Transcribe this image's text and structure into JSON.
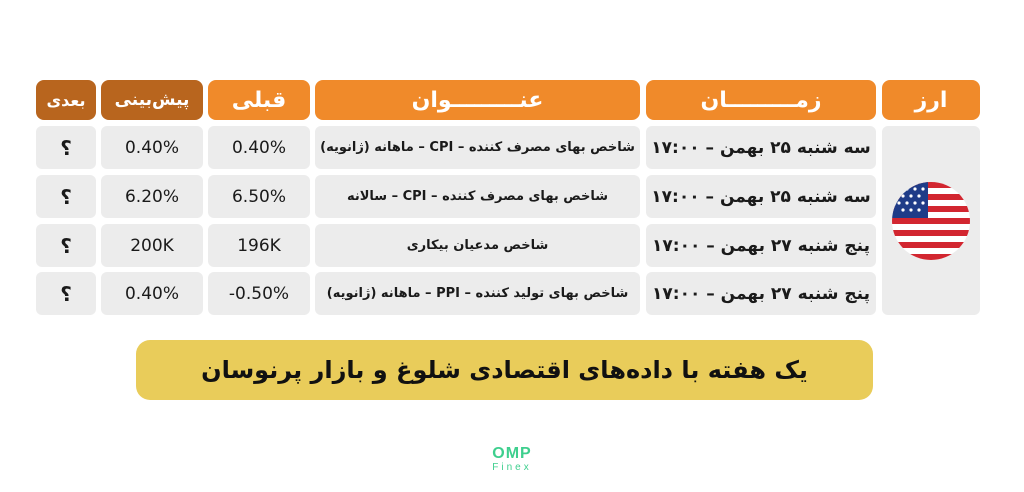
{
  "headers": {
    "currency": "ارز",
    "time": "زمـــــــــان",
    "title": "عنـــــــــوان",
    "previous": "قبلی",
    "forecast": "پیش‌بینی",
    "next": "بعدی"
  },
  "rows": [
    {
      "time": "سه شنبه ۲۵ بهمن – ۱۷:۰۰",
      "title": "شاخص بهای مصرف کننده – CPI – ماهانه (ژانویه)",
      "previous": "0.40%",
      "forecast": "0.40%",
      "next": "؟"
    },
    {
      "time": "سه شنبه ۲۵ بهمن – ۱۷:۰۰",
      "title": "شاخص بهای مصرف کننده – CPI – سالانه",
      "previous": "6.50%",
      "forecast": "6.20%",
      "next": "؟"
    },
    {
      "time": "پنج شنبه ۲۷ بهمن – ۱۷:۰۰",
      "title": "شاخص مدعیان بیکاری",
      "previous": "196K",
      "forecast": "200K",
      "next": "؟"
    },
    {
      "time": "پنج شنبه ۲۷ بهمن – ۱۷:۰۰",
      "title": "شاخص بهای تولید کننده – PPI – ماهانه (ژانویه)",
      "previous": "-0.50%",
      "forecast": "0.40%",
      "next": "؟"
    }
  ],
  "banner": "یک هفته با داده‌های اقتصادی شلوغ و بازار پرنوسان",
  "logo": {
    "main": "OMP",
    "sub": "Finex"
  },
  "colors": {
    "orange": "#f08a2a",
    "brown": "#b8651e",
    "yellow": "#e9cc5a",
    "green": "#3ecf8e"
  },
  "icons": {
    "flag": "usa-flag-icon"
  }
}
